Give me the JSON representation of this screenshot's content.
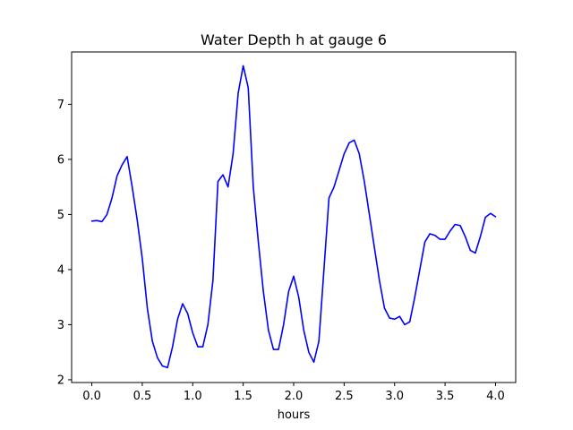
{
  "chart_data": {
    "type": "line",
    "title": "Water Depth h at gauge 6",
    "xlabel": "hours",
    "ylabel": "",
    "xlim": [
      -0.2,
      4.2
    ],
    "ylim": [
      1.95,
      7.95
    ],
    "xticks": [
      0.0,
      0.5,
      1.0,
      1.5,
      2.0,
      2.5,
      3.0,
      3.5,
      4.0
    ],
    "xtick_labels": [
      "0.0",
      "0.5",
      "1.0",
      "1.5",
      "2.0",
      "2.5",
      "3.0",
      "3.5",
      "4.0"
    ],
    "yticks": [
      2,
      3,
      4,
      5,
      6,
      7
    ],
    "ytick_labels": [
      "2",
      "3",
      "4",
      "5",
      "6",
      "7"
    ],
    "grid": false,
    "series": [
      {
        "color": "#0000ff",
        "x": [
          0.0,
          0.05,
          0.1,
          0.15,
          0.2,
          0.25,
          0.3,
          0.35,
          0.4,
          0.45,
          0.5,
          0.55,
          0.6,
          0.65,
          0.7,
          0.75,
          0.8,
          0.85,
          0.9,
          0.95,
          1.0,
          1.05,
          1.1,
          1.15,
          1.2,
          1.25,
          1.3,
          1.35,
          1.4,
          1.45,
          1.5,
          1.55,
          1.6,
          1.65,
          1.7,
          1.75,
          1.8,
          1.85,
          1.9,
          1.95,
          2.0,
          2.05,
          2.1,
          2.15,
          2.2,
          2.25,
          2.3,
          2.35,
          2.4,
          2.45,
          2.5,
          2.55,
          2.6,
          2.65,
          2.7,
          2.75,
          2.8,
          2.85,
          2.9,
          2.95,
          3.0,
          3.05,
          3.1,
          3.15,
          3.2,
          3.25,
          3.3,
          3.35,
          3.4,
          3.45,
          3.5,
          3.55,
          3.6,
          3.65,
          3.7,
          3.75,
          3.8,
          3.85,
          3.9,
          3.95,
          4.0
        ],
        "y": [
          4.88,
          4.89,
          4.87,
          5.0,
          5.3,
          5.7,
          5.9,
          6.05,
          5.5,
          4.9,
          4.2,
          3.3,
          2.7,
          2.4,
          2.25,
          2.22,
          2.6,
          3.1,
          3.38,
          3.2,
          2.85,
          2.6,
          2.6,
          3.0,
          3.8,
          5.6,
          5.72,
          5.5,
          6.1,
          7.2,
          7.7,
          7.3,
          5.5,
          4.5,
          3.6,
          2.9,
          2.55,
          2.55,
          3.0,
          3.6,
          3.88,
          3.5,
          2.9,
          2.5,
          2.32,
          2.7,
          4.0,
          5.3,
          5.5,
          5.8,
          6.1,
          6.3,
          6.35,
          6.1,
          5.6,
          5.0,
          4.4,
          3.8,
          3.3,
          3.12,
          3.1,
          3.15,
          3.0,
          3.05,
          3.5,
          4.0,
          4.5,
          4.65,
          4.62,
          4.55,
          4.55,
          4.7,
          4.82,
          4.8,
          4.6,
          4.35,
          4.3,
          4.6,
          4.95,
          5.02,
          4.96
        ]
      }
    ]
  }
}
